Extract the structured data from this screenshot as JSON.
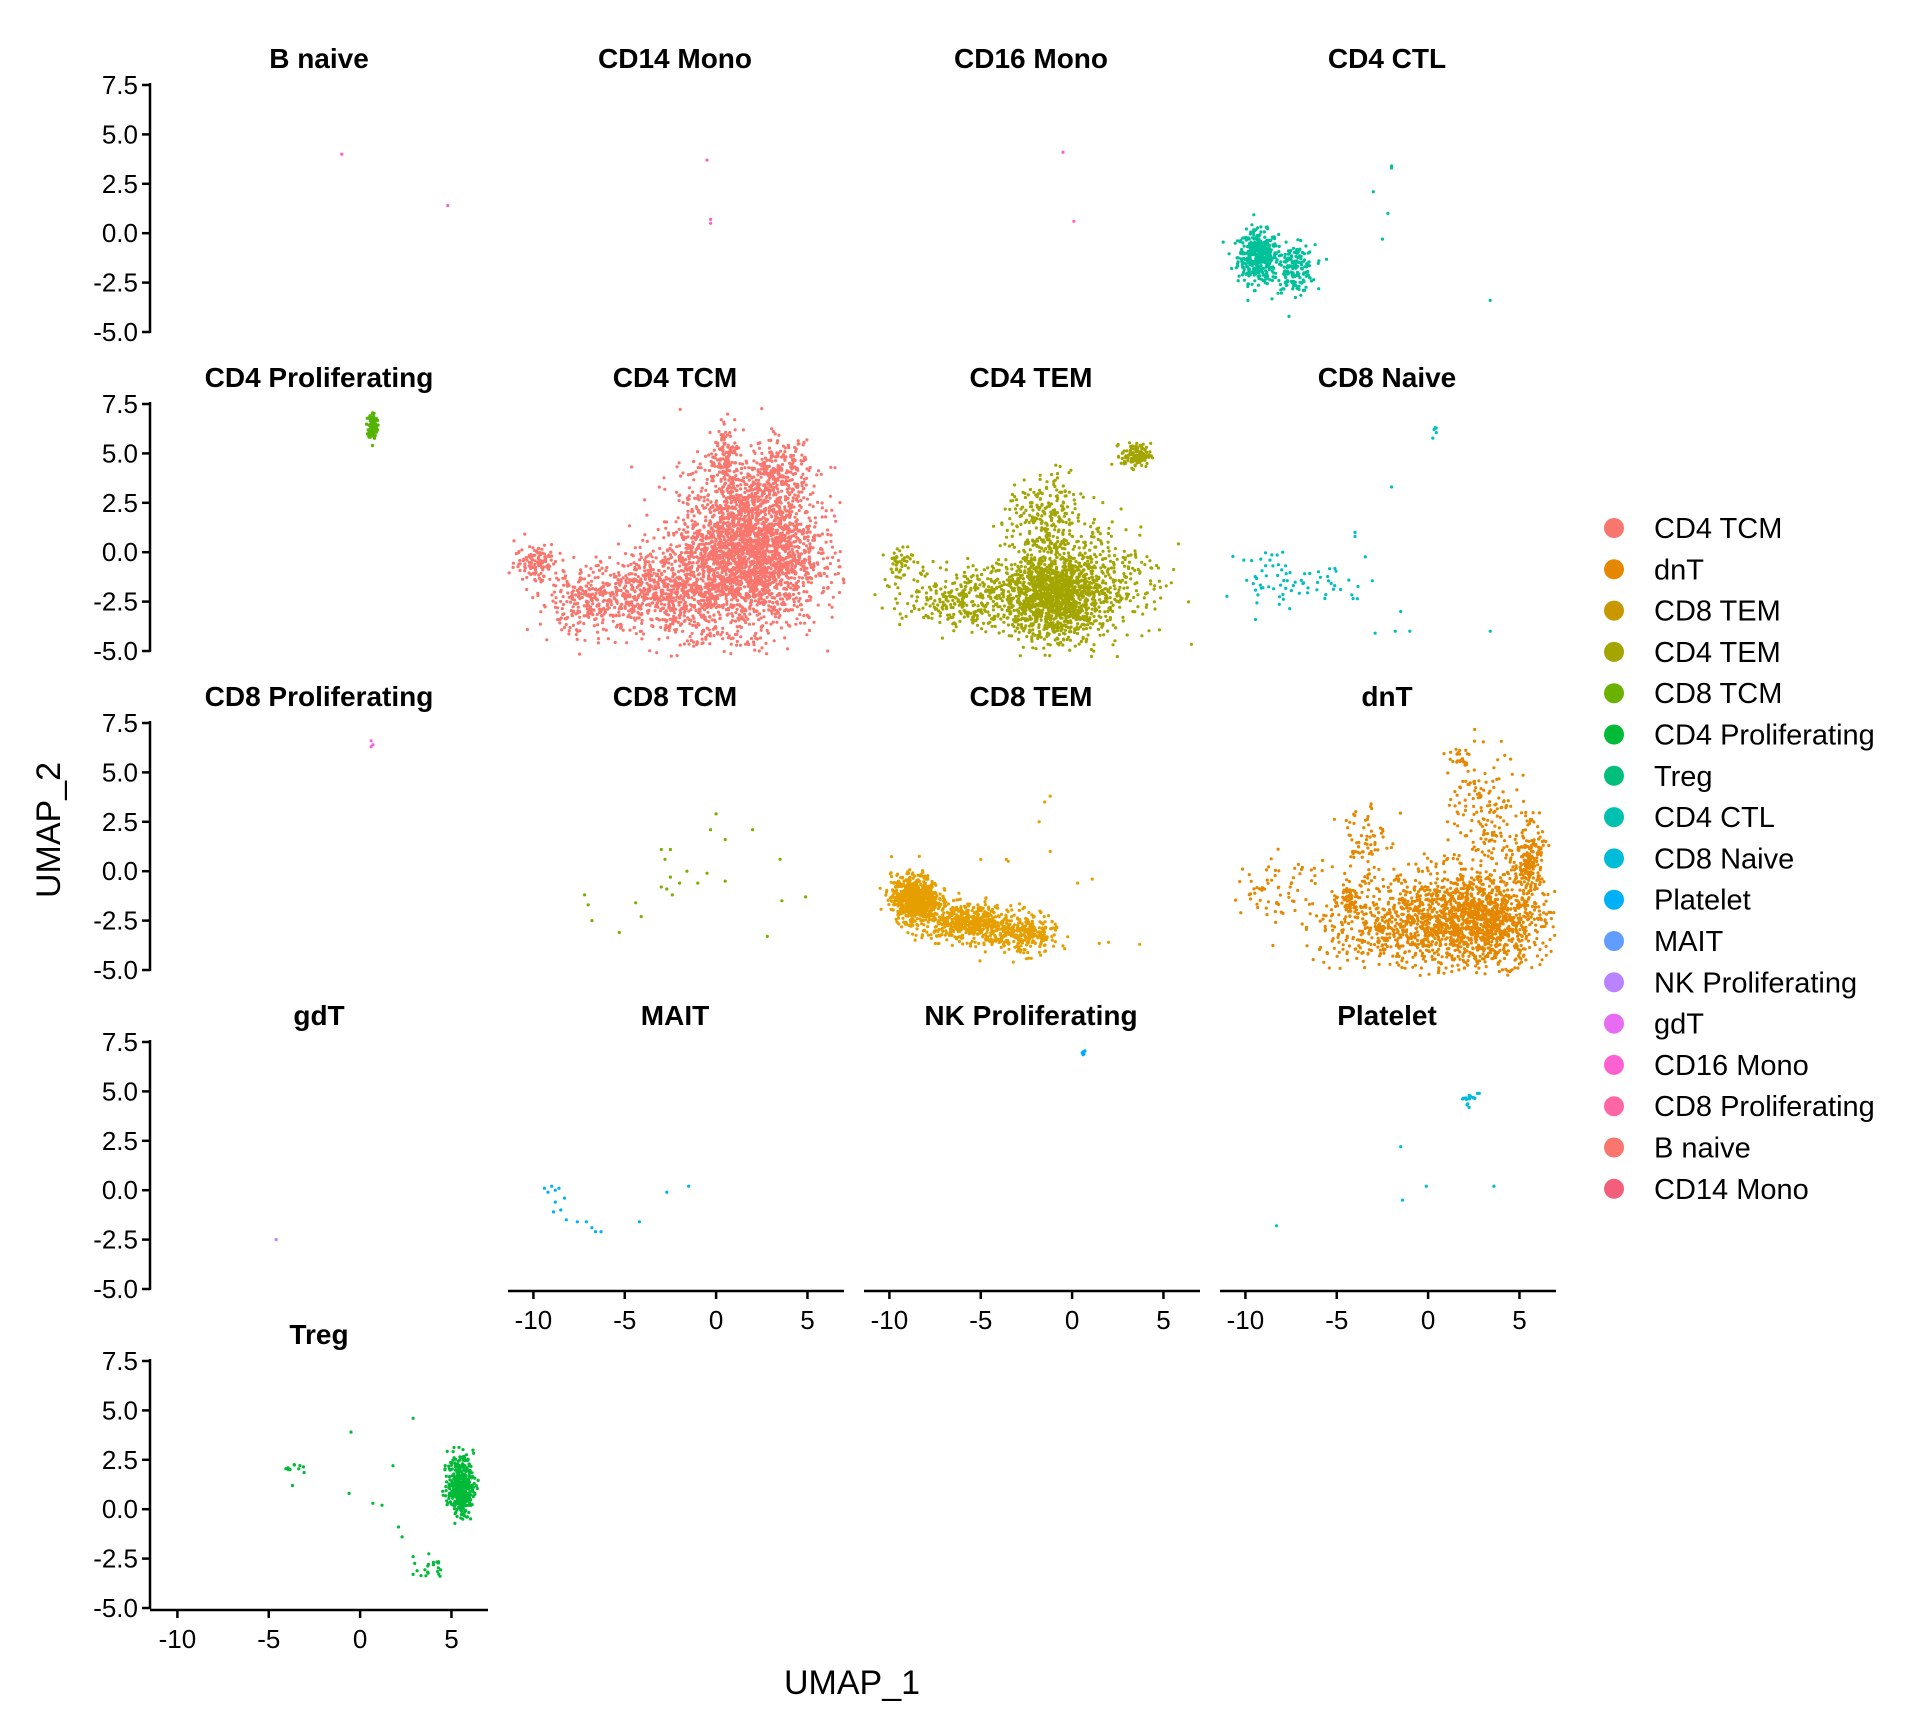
{
  "chart_data": {
    "type": "scatter",
    "xlabel": "UMAP_1",
    "ylabel": "UMAP_2",
    "xlim": [
      -11.5,
      7
    ],
    "ylim": [
      -5,
      7.5
    ],
    "x_ticks": [
      -10,
      -5,
      0,
      5
    ],
    "x_tick_labels": [
      "-10",
      "-5",
      "0",
      "5"
    ],
    "y_ticks": [
      7.5,
      5.0,
      2.5,
      0.0,
      -2.5,
      -5.0
    ],
    "y_tick_labels": [
      "7.5",
      "5.0",
      "2.5",
      "0.0",
      "-2.5",
      "-5.0"
    ],
    "grid": false,
    "legend_position": "right",
    "legend": [
      {
        "name": "CD4 TCM",
        "color": "#F8766D"
      },
      {
        "name": "dnT",
        "color": "#E58700"
      },
      {
        "name": "CD8 TEM",
        "color": "#C99800"
      },
      {
        "name": "CD4 TEM",
        "color": "#A3A500"
      },
      {
        "name": "CD8 TCM",
        "color": "#6BB100"
      },
      {
        "name": "CD4 Proliferating",
        "color": "#00BA38"
      },
      {
        "name": "Treg",
        "color": "#00BF7D"
      },
      {
        "name": "CD4 CTL",
        "color": "#00C0AF"
      },
      {
        "name": "CD8 Naive",
        "color": "#00BCD8"
      },
      {
        "name": "Platelet",
        "color": "#00B0F6"
      },
      {
        "name": "MAIT",
        "color": "#619CFF"
      },
      {
        "name": "NK Proliferating",
        "color": "#B983FF"
      },
      {
        "name": "gdT",
        "color": "#E76BF3"
      },
      {
        "name": "CD16 Mono",
        "color": "#FD61D1"
      },
      {
        "name": "CD8 Proliferating",
        "color": "#FF67A4"
      },
      {
        "name": "B naive",
        "color": "#F8766D"
      },
      {
        "name": "CD14 Mono",
        "color": "#F35E7A"
      }
    ],
    "panels": [
      {
        "title": "B naive",
        "color": "#FF61C3",
        "points": [
          [
            -1,
            4
          ],
          [
            4.8,
            1.4
          ]
        ]
      },
      {
        "title": "CD14 Mono",
        "color": "#FF61C3",
        "points": [
          [
            -0.5,
            3.7
          ],
          [
            -0.3,
            0.7
          ],
          [
            -0.3,
            0.5
          ]
        ]
      },
      {
        "title": "CD16 Mono",
        "color": "#FF61C3",
        "points": [
          [
            -0.5,
            4.1
          ],
          [
            0.1,
            0.6
          ]
        ]
      },
      {
        "title": "CD4 CTL",
        "color": "#00C19A",
        "clusters": [
          {
            "cx": -9.3,
            "cy": -1.2,
            "sx": 0.55,
            "sy": 0.65,
            "n": 420
          },
          {
            "cx": -7.3,
            "cy": -1.8,
            "sx": 0.55,
            "sy": 0.6,
            "n": 180
          }
        ],
        "points": [
          [
            -2,
            3.4
          ],
          [
            -2,
            3.3
          ],
          [
            -3,
            2.1
          ],
          [
            -2.2,
            1
          ],
          [
            -2.5,
            -0.3
          ],
          [
            3.4,
            -3.4
          ]
        ]
      },
      {
        "title": "CD4 Proliferating",
        "color": "#53B400",
        "clusters": [
          {
            "cx": 0.7,
            "cy": 6.4,
            "sx": 0.12,
            "sy": 0.35,
            "n": 120
          }
        ],
        "points": []
      },
      {
        "title": "CD4 TCM",
        "color": "#F8766D",
        "clusters": [
          {
            "cx": 1.8,
            "cy": 0.1,
            "sx": 1.9,
            "sy": 2.0,
            "n": 2600
          },
          {
            "cx": -2.5,
            "cy": -2.0,
            "sx": 1.8,
            "sy": 1.1,
            "n": 700
          },
          {
            "cx": -7,
            "cy": -2.5,
            "sx": 1.4,
            "sy": 0.8,
            "n": 300
          },
          {
            "cx": -9.8,
            "cy": -0.5,
            "sx": 0.6,
            "sy": 0.5,
            "n": 120
          },
          {
            "cx": 0.5,
            "cy": 4.8,
            "sx": 0.4,
            "sy": 0.8,
            "n": 120
          },
          {
            "cx": 3.3,
            "cy": 4.0,
            "sx": 0.9,
            "sy": 0.8,
            "n": 220
          }
        ],
        "points": []
      },
      {
        "title": "CD4 TEM",
        "color": "#A3A500",
        "clusters": [
          {
            "cx": -1.0,
            "cy": -2.2,
            "sx": 1.4,
            "sy": 1.1,
            "n": 1400
          },
          {
            "cx": -5.5,
            "cy": -2.3,
            "sx": 1.8,
            "sy": 0.8,
            "n": 350
          },
          {
            "cx": -1.5,
            "cy": 1.5,
            "sx": 1.0,
            "sy": 1.2,
            "n": 250
          },
          {
            "cx": 3.5,
            "cy": 4.9,
            "sx": 0.4,
            "sy": 0.3,
            "n": 120
          },
          {
            "cx": 2,
            "cy": -1.2,
            "sx": 1.6,
            "sy": 1.6,
            "n": 250
          },
          {
            "cx": -9.5,
            "cy": -0.5,
            "sx": 0.4,
            "sy": 0.5,
            "n": 50
          }
        ],
        "points": []
      },
      {
        "title": "CD8 Naive",
        "color": "#00BFC4",
        "clusters": [
          {
            "cx": -8.5,
            "cy": -1.3,
            "sx": 0.9,
            "sy": 0.7,
            "n": 45
          },
          {
            "cx": -5.5,
            "cy": -1.6,
            "sx": 1.3,
            "sy": 0.5,
            "n": 30
          },
          {
            "cx": 0.4,
            "cy": 6.1,
            "sx": 0.07,
            "sy": 0.2,
            "n": 5
          }
        ],
        "points": [
          [
            -2,
            3.3
          ],
          [
            -4,
            1.0
          ],
          [
            -4,
            0.8
          ],
          [
            -1.5,
            -3
          ],
          [
            -1.8,
            -4
          ],
          [
            -2.9,
            -4.1
          ],
          [
            -1,
            -4
          ],
          [
            3.4,
            -4
          ]
        ]
      },
      {
        "title": "CD8 Proliferating",
        "color": "#F564E3",
        "points": [
          [
            0.6,
            6.6
          ],
          [
            0.6,
            6.3
          ],
          [
            0.7,
            6.4
          ]
        ]
      },
      {
        "title": "CD8 TCM",
        "color": "#7CAE00",
        "points": [
          [
            0,
            2.9
          ],
          [
            -2.5,
            1.1
          ],
          [
            -3,
            1.1
          ],
          [
            0.5,
            1.6
          ],
          [
            2,
            2.1
          ],
          [
            -0.3,
            2.1
          ],
          [
            -2.8,
            0.6
          ],
          [
            -1.6,
            0
          ],
          [
            -2.7,
            -0.9
          ],
          [
            -2.4,
            -1.2
          ],
          [
            -2,
            -0.6
          ],
          [
            -1,
            -0.6
          ],
          [
            -0.5,
            -0.1
          ],
          [
            0.5,
            -0.5
          ],
          [
            -4.4,
            -1.6
          ],
          [
            -4.1,
            -2.3
          ],
          [
            -5.3,
            -3.1
          ],
          [
            -7,
            -1.7
          ],
          [
            -6.8,
            -2.5
          ],
          [
            -7.2,
            -1.2
          ],
          [
            3.6,
            -1.5
          ],
          [
            4.9,
            -1.3
          ],
          [
            2.8,
            -3.3
          ],
          [
            3.5,
            0.6
          ],
          [
            -2.5,
            -0.3
          ],
          [
            -3,
            -0.8
          ]
        ]
      },
      {
        "title": "CD8 TEM",
        "color": "#E69F00",
        "clusters": [
          {
            "cx": -8.6,
            "cy": -1.4,
            "sx": 0.65,
            "sy": 0.6,
            "n": 700
          },
          {
            "cx": -5.7,
            "cy": -2.6,
            "sx": 1.2,
            "sy": 0.45,
            "n": 500
          },
          {
            "cx": -2.8,
            "cy": -3.2,
            "sx": 1.0,
            "sy": 0.5,
            "n": 300
          }
        ],
        "points": [
          [
            -1.2,
            3.8
          ],
          [
            -1.5,
            3.5
          ],
          [
            -1.8,
            2.5
          ],
          [
            -1.2,
            1
          ],
          [
            -3.5,
            0.5
          ],
          [
            -3.6,
            0.6
          ],
          [
            -5,
            0.6
          ],
          [
            0.3,
            -0.6
          ],
          [
            1.1,
            -0.4
          ],
          [
            2,
            -3.6
          ],
          [
            3.7,
            -3.7
          ]
        ]
      },
      {
        "title": "dnT",
        "color": "#E58700",
        "clusters": [
          {
            "cx": 3.3,
            "cy": -2.5,
            "sx": 1.5,
            "sy": 1.1,
            "n": 900
          },
          {
            "cx": 0.3,
            "cy": -2.5,
            "sx": 1.8,
            "sy": 1.2,
            "n": 700
          },
          {
            "cx": -3.5,
            "cy": -3.0,
            "sx": 1.6,
            "sy": 0.8,
            "n": 200
          },
          {
            "cx": -4.3,
            "cy": -1.4,
            "sx": 0.3,
            "sy": 0.3,
            "n": 60
          },
          {
            "cx": -3.5,
            "cy": 1.5,
            "sx": 0.6,
            "sy": 1.2,
            "n": 80
          },
          {
            "cx": 3.2,
            "cy": 2.5,
            "sx": 1.0,
            "sy": 1.8,
            "n": 180
          },
          {
            "cx": 5.5,
            "cy": 0.5,
            "sx": 0.4,
            "sy": 0.9,
            "n": 200
          },
          {
            "cx": -8,
            "cy": -0.8,
            "sx": 1.5,
            "sy": 0.8,
            "n": 70
          },
          {
            "cx": 1.6,
            "cy": 5.8,
            "sx": 0.4,
            "sy": 0.3,
            "n": 25
          }
        ],
        "points": []
      },
      {
        "title": "gdT",
        "color": "#B983FF",
        "points": [
          [
            -4.6,
            -2.5
          ]
        ]
      },
      {
        "title": "MAIT",
        "color": "#00B0F6",
        "points": [
          [
            -9,
            0.2
          ],
          [
            -8.8,
            0
          ],
          [
            -9.2,
            -0.1
          ],
          [
            -8.6,
            0.1
          ],
          [
            -8.3,
            -0.4
          ],
          [
            -8.8,
            -0.6
          ],
          [
            -8.5,
            -1
          ],
          [
            -8.9,
            -1.1
          ],
          [
            -8.2,
            -1.5
          ],
          [
            -7.6,
            -1.6
          ],
          [
            -7.1,
            -1.6
          ],
          [
            -6.8,
            -1.9
          ],
          [
            -6.6,
            -2.1
          ],
          [
            -6.3,
            -2.1
          ],
          [
            -4.2,
            -1.6
          ],
          [
            -2.7,
            -0.1
          ],
          [
            -1.5,
            0.2
          ],
          [
            -9.4,
            0.1
          ]
        ]
      },
      {
        "title": "NK Proliferating",
        "color": "#00A9FF",
        "points": [
          [
            0.6,
            7
          ],
          [
            0.65,
            6.9
          ],
          [
            0.7,
            7.05
          ],
          [
            0.55,
            6.95
          ],
          [
            0.6,
            6.85
          ]
        ]
      },
      {
        "title": "Platelet",
        "color": "#00BCD8",
        "clusters": [
          {
            "cx": 2.3,
            "cy": 4.6,
            "sx": 0.35,
            "sy": 0.15,
            "n": 18
          }
        ],
        "points": [
          [
            2.8,
            4.9
          ],
          [
            2.7,
            4.9
          ],
          [
            -1.5,
            2.2
          ],
          [
            -1.4,
            -0.5
          ],
          [
            -0.1,
            0.2
          ],
          [
            3.6,
            0.2
          ],
          [
            -8.3,
            -1.8
          ]
        ]
      },
      {
        "title": "Treg",
        "color": "#00BA38",
        "clusters": [
          {
            "cx": 5.5,
            "cy": 1.2,
            "sx": 0.35,
            "sy": 0.75,
            "n": 400
          },
          {
            "cx": 3.8,
            "cy": -3.0,
            "sx": 0.35,
            "sy": 0.3,
            "n": 20
          },
          {
            "cx": -3.5,
            "cy": 2.2,
            "sx": 0.35,
            "sy": 0.2,
            "n": 10
          }
        ],
        "points": [
          [
            -0.5,
            3.9
          ],
          [
            2.9,
            4.6
          ],
          [
            1.8,
            2.2
          ],
          [
            -0.6,
            0.8
          ],
          [
            0.7,
            0.3
          ],
          [
            1.2,
            0.2
          ],
          [
            2.1,
            -0.9
          ],
          [
            2.3,
            -1.4
          ],
          [
            2.9,
            -2.4
          ],
          [
            2.9,
            -3.3
          ],
          [
            -3.7,
            1.2
          ]
        ]
      }
    ]
  }
}
